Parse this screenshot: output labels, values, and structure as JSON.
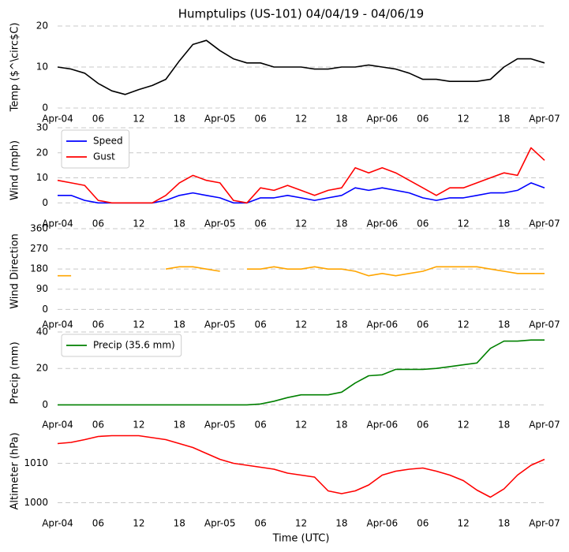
{
  "chart_data": [
    {
      "type": "line",
      "title": "Humptulips (US-101) 04/04/19 - 04/06/19",
      "ylabel": "Temp ($^\\circ$C)",
      "x": [
        0,
        2,
        4,
        6,
        8,
        10,
        12,
        14,
        16,
        18,
        20,
        22,
        24,
        26,
        28,
        30,
        32,
        34,
        36,
        38,
        40,
        42,
        44,
        46,
        48,
        50,
        52,
        54,
        56,
        58,
        60,
        62,
        64,
        66,
        68,
        70,
        72
      ],
      "values": [
        10,
        9.5,
        8.5,
        6,
        4.2,
        3.3,
        4.5,
        5.5,
        7,
        11.5,
        15.5,
        16.5,
        14,
        12,
        11,
        11,
        10,
        10,
        10,
        9.5,
        9.5,
        10,
        10,
        10.5,
        10,
        9.5,
        8.5,
        7,
        7,
        6.5,
        6.5,
        6.5,
        7,
        10,
        12,
        12,
        11
      ],
      "color": "#000000",
      "xlim": [
        0,
        72
      ],
      "ylim": [
        0,
        20
      ],
      "yticks": [
        0,
        10,
        20
      ],
      "xticks": [
        {
          "value": 0,
          "label": "Apr-04"
        },
        {
          "value": 6,
          "label": "06"
        },
        {
          "value": 12,
          "label": "12"
        },
        {
          "value": 18,
          "label": "18"
        },
        {
          "value": 24,
          "label": "Apr-05"
        },
        {
          "value": 30,
          "label": "06"
        },
        {
          "value": 36,
          "label": "12"
        },
        {
          "value": 42,
          "label": "18"
        },
        {
          "value": 48,
          "label": "Apr-06"
        },
        {
          "value": 54,
          "label": "06"
        },
        {
          "value": 60,
          "label": "12"
        },
        {
          "value": 66,
          "label": "18"
        },
        {
          "value": 72,
          "label": "Apr-07"
        }
      ],
      "grid": true
    },
    {
      "type": "line",
      "ylabel": "Wind (mph)",
      "x": [
        0,
        2,
        4,
        6,
        8,
        10,
        12,
        14,
        16,
        18,
        20,
        22,
        24,
        26,
        28,
        30,
        32,
        34,
        36,
        38,
        40,
        42,
        44,
        46,
        48,
        50,
        52,
        54,
        56,
        58,
        60,
        62,
        64,
        66,
        68,
        70,
        72
      ],
      "series": [
        {
          "name": "Speed",
          "color": "#0000ff",
          "values": [
            3,
            3,
            1,
            0,
            0,
            0,
            0,
            0,
            1,
            3,
            4,
            3,
            2,
            0,
            0,
            2,
            2,
            3,
            2,
            1,
            2,
            3,
            6,
            5,
            6,
            5,
            4,
            2,
            1,
            2,
            2,
            3,
            4,
            4,
            5,
            8,
            6
          ]
        },
        {
          "name": "Gust",
          "color": "#ff0000",
          "values": [
            9,
            8,
            7,
            1,
            0,
            0,
            0,
            0,
            3,
            8,
            11,
            9,
            8,
            1,
            0,
            6,
            5,
            7,
            5,
            3,
            5,
            6,
            14,
            12,
            14,
            12,
            9,
            6,
            3,
            6,
            6,
            8,
            10,
            12,
            11,
            22,
            17
          ]
        }
      ],
      "xlim": [
        0,
        72
      ],
      "ylim": [
        -4,
        30
      ],
      "yticks": [
        0,
        10,
        20,
        30
      ],
      "xticks": [
        {
          "value": 0,
          "label": "Apr-04"
        },
        {
          "value": 6,
          "label": "06"
        },
        {
          "value": 12,
          "label": "12"
        },
        {
          "value": 18,
          "label": "18"
        },
        {
          "value": 24,
          "label": "Apr-05"
        },
        {
          "value": 30,
          "label": "06"
        },
        {
          "value": 36,
          "label": "12"
        },
        {
          "value": 42,
          "label": "18"
        },
        {
          "value": 48,
          "label": "Apr-06"
        },
        {
          "value": 54,
          "label": "06"
        },
        {
          "value": 60,
          "label": "12"
        },
        {
          "value": 66,
          "label": "18"
        },
        {
          "value": 72,
          "label": "Apr-07"
        }
      ],
      "grid": true,
      "legend": "upper left"
    },
    {
      "type": "line",
      "ylabel": "Wind Direction",
      "x": [
        0,
        2,
        4,
        6,
        8,
        10,
        12,
        14,
        16,
        18,
        20,
        22,
        24,
        26,
        28,
        30,
        32,
        34,
        36,
        38,
        40,
        42,
        44,
        46,
        48,
        50,
        52,
        54,
        56,
        58,
        60,
        62,
        64,
        66,
        68,
        70,
        72
      ],
      "values": [
        150,
        150,
        null,
        null,
        null,
        null,
        null,
        null,
        180,
        190,
        190,
        180,
        170,
        null,
        180,
        180,
        190,
        180,
        180,
        190,
        180,
        180,
        170,
        150,
        160,
        150,
        160,
        170,
        190,
        190,
        190,
        190,
        180,
        170,
        160,
        160,
        160
      ],
      "color": "#ffa500",
      "xlim": [
        0,
        72
      ],
      "ylim": [
        -20,
        360
      ],
      "yticks": [
        0,
        90,
        180,
        270,
        360
      ],
      "xticks": [
        {
          "value": 0,
          "label": "Apr-04"
        },
        {
          "value": 6,
          "label": "06"
        },
        {
          "value": 12,
          "label": "12"
        },
        {
          "value": 18,
          "label": "18"
        },
        {
          "value": 24,
          "label": "Apr-05"
        },
        {
          "value": 30,
          "label": "06"
        },
        {
          "value": 36,
          "label": "12"
        },
        {
          "value": 42,
          "label": "18"
        },
        {
          "value": 48,
          "label": "Apr-06"
        },
        {
          "value": 54,
          "label": "06"
        },
        {
          "value": 60,
          "label": "12"
        },
        {
          "value": 66,
          "label": "18"
        },
        {
          "value": 72,
          "label": "Apr-07"
        }
      ],
      "grid": true
    },
    {
      "type": "line",
      "ylabel": "Precip (mm)",
      "x": [
        0,
        2,
        4,
        6,
        8,
        10,
        12,
        14,
        16,
        18,
        20,
        22,
        24,
        26,
        28,
        30,
        32,
        34,
        36,
        38,
        40,
        42,
        44,
        46,
        48,
        50,
        52,
        54,
        56,
        58,
        60,
        62,
        64,
        66,
        68,
        70,
        72
      ],
      "series": [
        {
          "name": "Precip (35.6 mm)",
          "color": "#008000",
          "values": [
            0,
            0,
            0,
            0,
            0,
            0,
            0,
            0,
            0,
            0,
            0,
            0,
            0,
            0,
            0,
            0.5,
            2,
            4,
            5.5,
            5.5,
            5.5,
            7,
            12,
            16,
            16.5,
            19.5,
            19.5,
            19.5,
            20,
            21,
            22,
            23,
            31,
            35,
            35,
            35.6,
            35.6
          ]
        }
      ],
      "xlim": [
        0,
        72
      ],
      "ylim": [
        -5,
        40
      ],
      "yticks": [
        0,
        20,
        40
      ],
      "xticks": [
        {
          "value": 0,
          "label": "Apr-04"
        },
        {
          "value": 6,
          "label": "06"
        },
        {
          "value": 12,
          "label": "12"
        },
        {
          "value": 18,
          "label": "18"
        },
        {
          "value": 24,
          "label": "Apr-05"
        },
        {
          "value": 30,
          "label": "06"
        },
        {
          "value": 36,
          "label": "12"
        },
        {
          "value": 42,
          "label": "18"
        },
        {
          "value": 48,
          "label": "Apr-06"
        },
        {
          "value": 54,
          "label": "06"
        },
        {
          "value": 60,
          "label": "12"
        },
        {
          "value": 66,
          "label": "18"
        },
        {
          "value": 72,
          "label": "Apr-07"
        }
      ],
      "grid": true,
      "legend": "upper left"
    },
    {
      "type": "line",
      "ylabel": "Altimeter (hPa)",
      "xlabel": "Time (UTC)",
      "x": [
        0,
        2,
        4,
        6,
        8,
        10,
        12,
        14,
        16,
        18,
        20,
        22,
        24,
        26,
        28,
        30,
        32,
        34,
        36,
        38,
        40,
        42,
        44,
        46,
        48,
        50,
        52,
        54,
        56,
        58,
        60,
        62,
        64,
        66,
        68,
        70,
        72
      ],
      "values": [
        1015,
        1015.3,
        1016,
        1016.8,
        1017,
        1017,
        1017,
        1016.5,
        1016,
        1015,
        1014,
        1012.5,
        1011,
        1010,
        1009.5,
        1009,
        1008.5,
        1007.5,
        1007,
        1006.5,
        1003,
        1002.3,
        1003,
        1004.5,
        1007,
        1008,
        1008.5,
        1008.8,
        1008,
        1007,
        1005.6,
        1003.2,
        1001.4,
        1003.5,
        1007,
        1009.5,
        1011
      ],
      "color": "#ff0000",
      "xlim": [
        0,
        72
      ],
      "ylim": [
        997.5,
        1018.5
      ],
      "yticks": [
        1000,
        1010
      ],
      "xticks": [
        {
          "value": 0,
          "label": "Apr-04"
        },
        {
          "value": 6,
          "label": "06"
        },
        {
          "value": 12,
          "label": "12"
        },
        {
          "value": 18,
          "label": "18"
        },
        {
          "value": 24,
          "label": "Apr-05"
        },
        {
          "value": 30,
          "label": "06"
        },
        {
          "value": 36,
          "label": "12"
        },
        {
          "value": 42,
          "label": "18"
        },
        {
          "value": 48,
          "label": "Apr-06"
        },
        {
          "value": 54,
          "label": "06"
        },
        {
          "value": 60,
          "label": "12"
        },
        {
          "value": 66,
          "label": "18"
        },
        {
          "value": 72,
          "label": "Apr-07"
        }
      ],
      "grid": true
    }
  ]
}
